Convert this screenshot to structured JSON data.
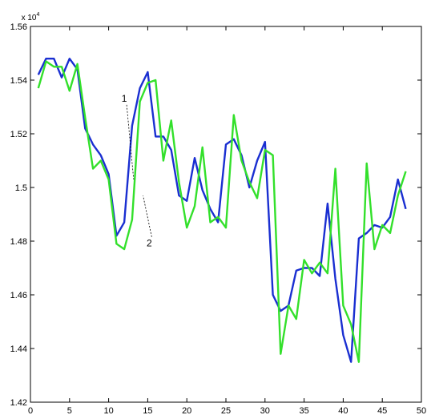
{
  "chart_data": {
    "type": "line",
    "title": "",
    "xlabel": "",
    "ylabel": "",
    "y_exponent_base": "x 10",
    "y_exponent_power": "4",
    "xlim": [
      0,
      50
    ],
    "ylim": [
      1.42,
      1.56
    ],
    "x_ticks": [
      0,
      5,
      10,
      15,
      20,
      25,
      30,
      35,
      40,
      45,
      50
    ],
    "x_tick_labels": [
      "0",
      "5",
      "10",
      "15",
      "20",
      "25",
      "30",
      "35",
      "40",
      "45",
      "50"
    ],
    "y_ticks": [
      1.42,
      1.44,
      1.46,
      1.48,
      1.5,
      1.52,
      1.54,
      1.56
    ],
    "y_tick_labels": [
      "1.42",
      "1.44",
      "1.46",
      "1.48",
      "1.5",
      "1.52",
      "1.54",
      "1.56"
    ],
    "grid": false,
    "annotations": [
      {
        "text": "1",
        "x": 12.0,
        "y": 1.532,
        "line_to": [
          13.2,
          1.503
        ]
      },
      {
        "text": "2",
        "x": 15.2,
        "y": 1.478,
        "line_to": [
          14.4,
          1.497
        ]
      }
    ],
    "series": [
      {
        "color": "#1a2fd1",
        "x": [
          1,
          2,
          3,
          4,
          5,
          6,
          7,
          8,
          9,
          10,
          11,
          12,
          13,
          14,
          15,
          16,
          17,
          18,
          19,
          20,
          21,
          22,
          23,
          24,
          25,
          26,
          27,
          28,
          29,
          30,
          31,
          32,
          33,
          34,
          35,
          36,
          37,
          38,
          39,
          40,
          41,
          42,
          43,
          44,
          45,
          46,
          47,
          48
        ],
        "values": [
          1.542,
          1.548,
          1.548,
          1.541,
          1.548,
          1.544,
          1.522,
          1.516,
          1.512,
          1.505,
          1.482,
          1.487,
          1.523,
          1.537,
          1.543,
          1.519,
          1.519,
          1.514,
          1.497,
          1.495,
          1.511,
          1.499,
          1.492,
          1.487,
          1.516,
          1.518,
          1.512,
          1.5,
          1.51,
          1.517,
          1.46,
          1.454,
          1.456,
          1.469,
          1.47,
          1.47,
          1.467,
          1.494,
          1.466,
          1.445,
          1.435,
          1.481,
          1.483,
          1.486,
          1.485,
          1.489,
          1.503,
          1.492
        ]
      },
      {
        "color": "#33e02b",
        "x": [
          1,
          2,
          3,
          4,
          5,
          6,
          7,
          8,
          9,
          10,
          11,
          12,
          13,
          14,
          15,
          16,
          17,
          18,
          19,
          20,
          21,
          22,
          23,
          24,
          25,
          26,
          27,
          28,
          29,
          30,
          31,
          32,
          33,
          34,
          35,
          36,
          37,
          38,
          39,
          40,
          41,
          42,
          43,
          44,
          45,
          46,
          47,
          48
        ],
        "values": [
          1.537,
          1.547,
          1.545,
          1.545,
          1.536,
          1.546,
          1.526,
          1.507,
          1.51,
          1.503,
          1.479,
          1.477,
          1.488,
          1.532,
          1.539,
          1.54,
          1.51,
          1.525,
          1.502,
          1.485,
          1.493,
          1.515,
          1.487,
          1.489,
          1.485,
          1.527,
          1.51,
          1.502,
          1.496,
          1.514,
          1.512,
          1.438,
          1.456,
          1.451,
          1.473,
          1.468,
          1.472,
          1.468,
          1.507,
          1.456,
          1.449,
          1.435,
          1.509,
          1.477,
          1.486,
          1.483,
          1.497,
          1.506
        ]
      }
    ]
  }
}
